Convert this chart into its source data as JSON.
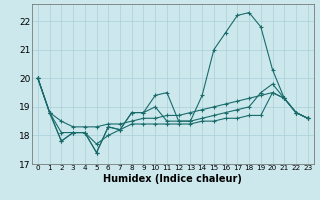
{
  "xlabel": "Humidex (Indice chaleur)",
  "ylabel": "",
  "bg_color": "#cce8ec",
  "grid_color": "#aacfd8",
  "line_color": "#1a6b6b",
  "xlim": [
    -0.5,
    23.5
  ],
  "ylim": [
    17,
    22.6
  ],
  "yticks": [
    17,
    18,
    19,
    20,
    21,
    22
  ],
  "xticks": [
    0,
    1,
    2,
    3,
    4,
    5,
    6,
    7,
    8,
    9,
    10,
    11,
    12,
    13,
    14,
    15,
    16,
    17,
    18,
    19,
    20,
    21,
    22,
    23
  ],
  "lines": [
    [
      20.0,
      18.8,
      17.8,
      18.1,
      18.1,
      17.4,
      18.3,
      18.2,
      18.8,
      18.8,
      19.4,
      19.5,
      18.5,
      18.5,
      19.4,
      21.0,
      21.6,
      22.2,
      22.3,
      21.8,
      20.3,
      19.3,
      18.8,
      18.6
    ],
    [
      20.0,
      18.8,
      17.8,
      18.1,
      18.1,
      17.4,
      18.3,
      18.2,
      18.8,
      18.8,
      19.0,
      18.5,
      18.5,
      18.5,
      18.6,
      18.7,
      18.8,
      18.9,
      19.0,
      19.5,
      19.8,
      19.3,
      18.8,
      18.6
    ],
    [
      20.0,
      18.8,
      18.5,
      18.3,
      18.3,
      18.3,
      18.4,
      18.4,
      18.5,
      18.6,
      18.6,
      18.7,
      18.7,
      18.8,
      18.9,
      19.0,
      19.1,
      19.2,
      19.3,
      19.4,
      19.5,
      19.3,
      18.8,
      18.6
    ],
    [
      20.0,
      18.8,
      18.1,
      18.1,
      18.1,
      17.7,
      18.0,
      18.2,
      18.4,
      18.4,
      18.4,
      18.4,
      18.4,
      18.4,
      18.5,
      18.5,
      18.6,
      18.6,
      18.7,
      18.7,
      19.5,
      19.3,
      18.8,
      18.6
    ]
  ],
  "xlabel_fontsize": 7,
  "ytick_fontsize": 6.5,
  "xtick_fontsize": 5.2
}
